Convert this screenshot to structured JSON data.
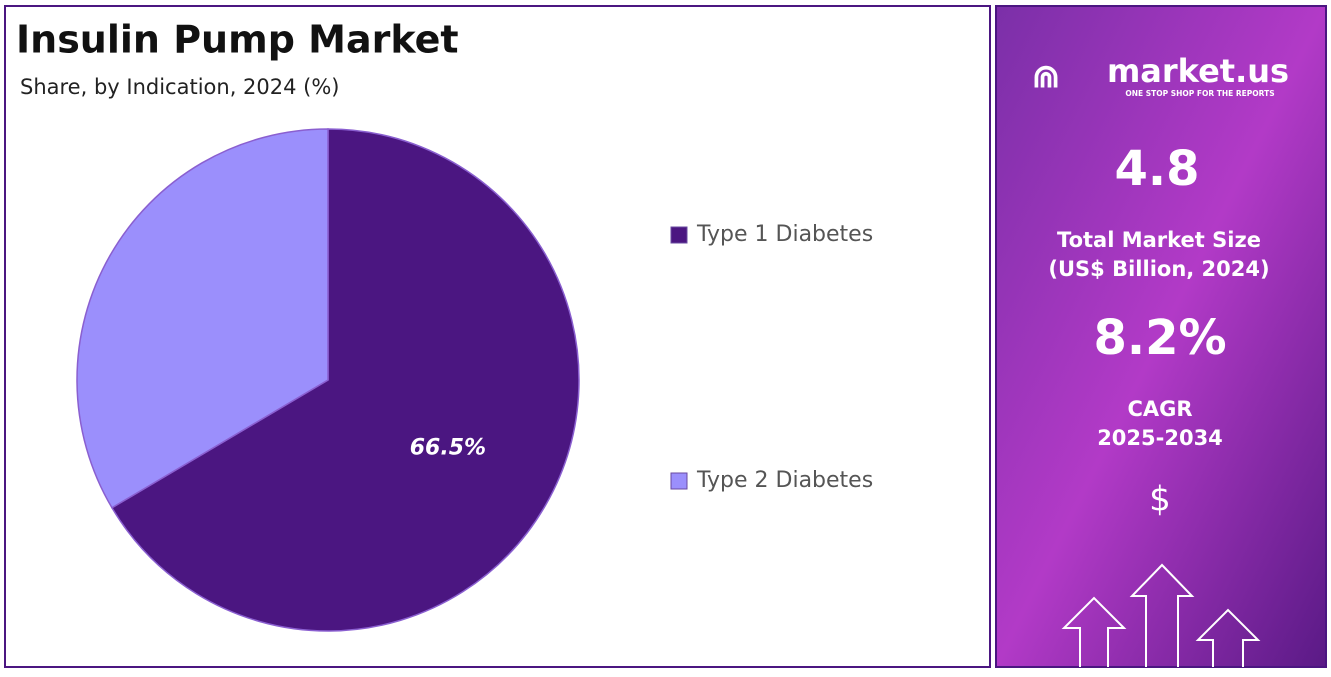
{
  "chart_data": {
    "type": "pie",
    "title": "Insulin Pump Market",
    "subtitle": "Share, by Indication, 2024 (%)",
    "categories": [
      "Type 1 Diabetes",
      "Type 2 Diabetes"
    ],
    "values": [
      66.5,
      33.5
    ],
    "value_labels": [
      "66.5%",
      null
    ],
    "colors": [
      "#4b1681",
      "#9b8ffc"
    ]
  },
  "panel": {
    "brand": "market.us",
    "tagline": "ONE STOP SHOP FOR THE REPORTS",
    "market_size": "4.8",
    "market_size_label": "Total Market Size",
    "market_size_unit": "(US$ Billion, 2024)",
    "cagr": "8.2%",
    "cagr_label": "CAGR",
    "cagr_period": "2025-2034",
    "currency_symbol": "$"
  }
}
